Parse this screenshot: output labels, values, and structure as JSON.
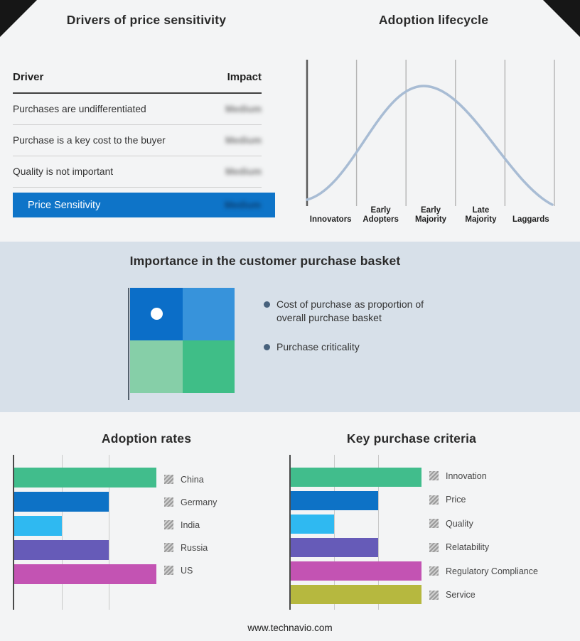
{
  "page": {
    "background": "#f3f4f5",
    "band_background": "#d7e0e9",
    "accent_blue": "#0e74c8"
  },
  "price_sensitivity": {
    "title": "Drivers of price sensitivity",
    "columns": {
      "driver": "Driver",
      "impact": "Impact"
    },
    "rows": [
      {
        "driver": "Purchases are undifferentiated",
        "impact": "Medium"
      },
      {
        "driver": "Purchase is a key cost to the buyer",
        "impact": "Medium"
      },
      {
        "driver": "Quality is not important",
        "impact": "Medium"
      }
    ],
    "summary_row": {
      "label": "Price Sensitivity",
      "impact": "Medium"
    }
  },
  "purchase_basket": {
    "title": "Importance in the customer purchase basket",
    "bullets": [
      "Cost of purchase as proportion of overall purchase basket",
      "Purchase criticality"
    ],
    "quadrant_colors": {
      "top_left": "#0b6ec8",
      "top_right": "#3793db",
      "bottom_left": "#86cfa8",
      "bottom_right": "#3fbe87"
    }
  },
  "footer": {
    "url": "www.technavio.com"
  },
  "chart_data": [
    {
      "type": "line",
      "title": "Adoption lifecycle",
      "categories": [
        "Innovators",
        "Early Adopters",
        "Early Majority",
        "Late Majority",
        "Laggards"
      ],
      "description": "Bell-shaped adoption curve rising from Innovators, peaking over Early Majority, falling to Laggards",
      "line_color": "#a8bcd4",
      "grid": true,
      "legend_position": "none"
    },
    {
      "type": "bar",
      "title": "Adoption rates",
      "orientation": "horizontal",
      "categories": [
        "China",
        "Germany",
        "India",
        "Russia",
        "US"
      ],
      "values": [
        3,
        2,
        1,
        2,
        3
      ],
      "xlim": [
        0,
        3
      ],
      "colors": [
        "#41bd8c",
        "#0d72c6",
        "#2fb9f1",
        "#665bb8",
        "#c353b3"
      ],
      "grid": true,
      "legend_position": "right"
    },
    {
      "type": "bar",
      "title": "Key purchase criteria",
      "orientation": "horizontal",
      "categories": [
        "Innovation",
        "Price",
        "Quality",
        "Relatability",
        "Regulatory Compliance",
        "Service"
      ],
      "values": [
        3,
        2,
        1,
        2,
        3,
        3
      ],
      "xlim": [
        0,
        3
      ],
      "colors": [
        "#41bd8c",
        "#0d72c6",
        "#2fb9f1",
        "#665bb8",
        "#c353b3",
        "#b6b83f"
      ],
      "grid": true,
      "legend_position": "right"
    }
  ]
}
